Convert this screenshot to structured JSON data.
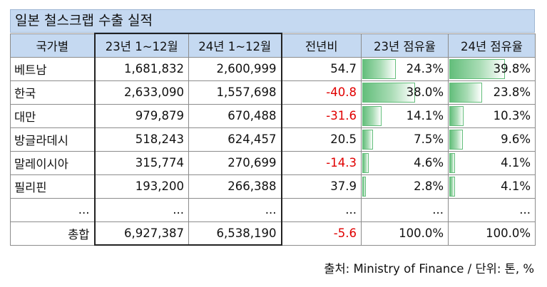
{
  "title": "일본 철스크랩 수출 실적",
  "headers": [
    "국가별",
    "23년 1~12월",
    "24년 1~12월",
    "전년비",
    "23년 점유율",
    "24년 점유율"
  ],
  "rows": [
    {
      "country": "베트남",
      "y23": "1,681,832",
      "y24": "2,600,999",
      "yoy": "54.7",
      "share23": "24.3%",
      "share24": "39.8%",
      "negative": false,
      "s23": 24.3,
      "s24": 39.8
    },
    {
      "country": "한국",
      "y23": "2,633,090",
      "y24": "1,557,698",
      "yoy": "-40.8",
      "share23": "38.0%",
      "share24": "23.8%",
      "negative": true,
      "s23": 38.0,
      "s24": 23.8
    },
    {
      "country": "대만",
      "y23": "979,879",
      "y24": "670,488",
      "yoy": "-31.6",
      "share23": "14.1%",
      "share24": "10.3%",
      "negative": true,
      "s23": 14.1,
      "s24": 10.3
    },
    {
      "country": "방글라데시",
      "y23": "518,243",
      "y24": "624,457",
      "yoy": "20.5",
      "share23": "7.5%",
      "share24": "9.6%",
      "negative": false,
      "s23": 7.5,
      "s24": 9.6
    },
    {
      "country": "말레이시아",
      "y23": "315,774",
      "y24": "270,699",
      "yoy": "-14.3",
      "share23": "4.6%",
      "share24": "4.1%",
      "negative": true,
      "s23": 4.6,
      "s24": 4.1
    },
    {
      "country": "필리핀",
      "y23": "193,200",
      "y24": "266,388",
      "yoy": "37.9",
      "share23": "2.8%",
      "share24": "4.1%",
      "negative": false,
      "s23": 2.8,
      "s24": 4.1
    }
  ],
  "ellipsis": "...",
  "total": {
    "label": "총합",
    "y23": "6,927,387",
    "y24": "6,538,190",
    "yoy": "-5.6",
    "share23": "100.0%",
    "share24": "100.0%",
    "negative": true
  },
  "source": "출처: Ministry of Finance / 단위: 톤, %",
  "colors": {
    "header_bg": "#c5d9f1",
    "negative": "#e00000",
    "bar": "#63be7b"
  }
}
